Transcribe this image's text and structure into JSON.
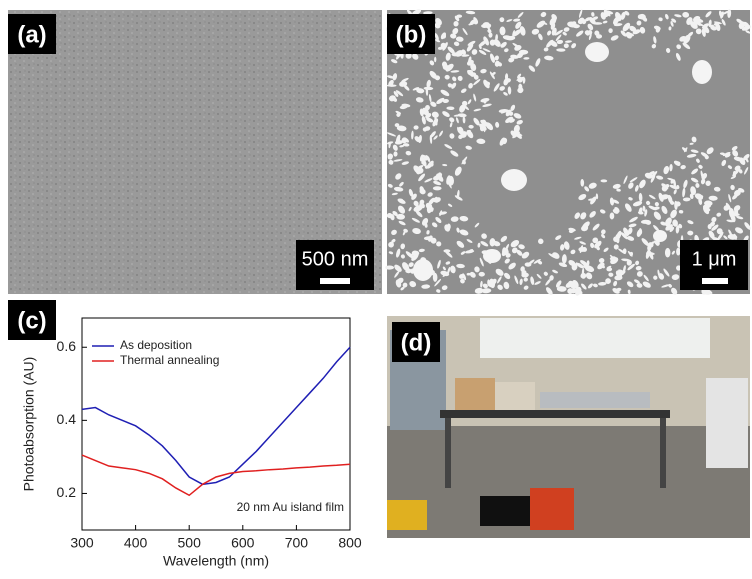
{
  "panels": {
    "a": {
      "label": "(a)",
      "scale_bar": "500 nm"
    },
    "b": {
      "label": "(b)",
      "scale_bar": "1 μm"
    },
    "c": {
      "label": "(c)"
    },
    "d": {
      "label": "(d)"
    }
  },
  "chart_data": {
    "type": "line",
    "x": [
      300,
      325,
      350,
      375,
      400,
      425,
      450,
      475,
      500,
      525,
      550,
      575,
      600,
      625,
      650,
      675,
      700,
      725,
      750,
      775,
      800
    ],
    "series": [
      {
        "name": "As deposition",
        "color": "#1f1fb4",
        "values": [
          0.43,
          0.435,
          0.415,
          0.4,
          0.385,
          0.36,
          0.33,
          0.29,
          0.245,
          0.225,
          0.23,
          0.245,
          0.28,
          0.315,
          0.355,
          0.395,
          0.435,
          0.475,
          0.515,
          0.56,
          0.6
        ]
      },
      {
        "name": "Thermal annealing",
        "color": "#e02020",
        "values": [
          0.305,
          0.29,
          0.275,
          0.27,
          0.265,
          0.255,
          0.24,
          0.215,
          0.195,
          0.225,
          0.245,
          0.255,
          0.26,
          0.262,
          0.265,
          0.267,
          0.27,
          0.272,
          0.275,
          0.277,
          0.28
        ]
      }
    ],
    "xlim": [
      300,
      800
    ],
    "ylim": [
      0.1,
      0.68
    ],
    "xticks": [
      300,
      400,
      500,
      600,
      700,
      800
    ],
    "yticks": [
      0.2,
      0.4,
      0.6
    ],
    "xlabel": "Wavelength (nm)",
    "ylabel": "Photoabsorption (AU)",
    "annotation": "20 nm Au island film"
  }
}
